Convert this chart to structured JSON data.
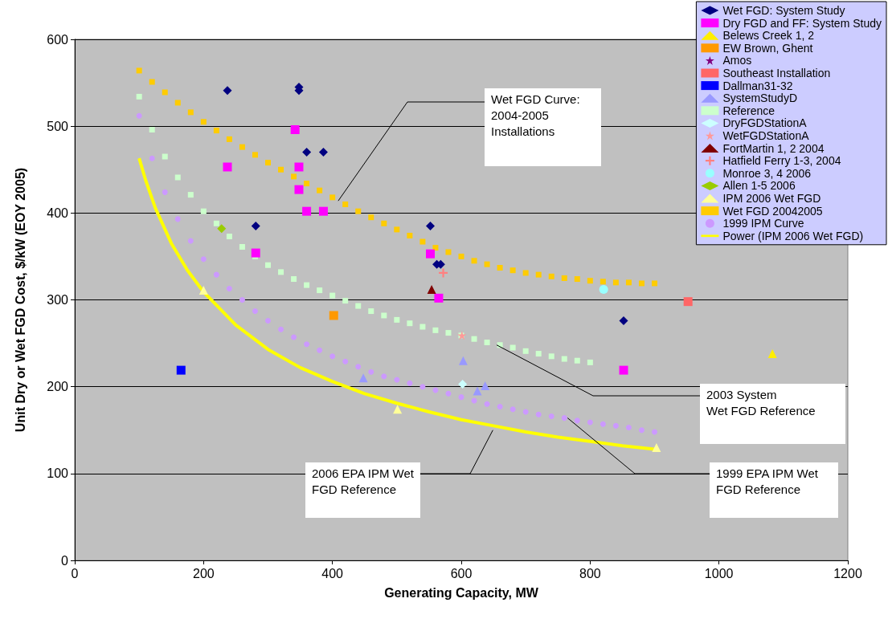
{
  "chart_data": {
    "type": "scatter",
    "xlabel": "Generating Capacity, MW",
    "ylabel": "Unit Dry or Wet FGD Cost, $/kW (EOY 2005)",
    "xlim": [
      0,
      1200
    ],
    "xticks": [
      0,
      200,
      400,
      600,
      800,
      1000,
      1200
    ],
    "ylim": [
      0,
      600
    ],
    "yticks": [
      0,
      100,
      200,
      300,
      400,
      500,
      600
    ],
    "grid": "y",
    "legend": "top right",
    "series": [
      {
        "name": "Wet FGD: System Study",
        "marker": "diamond",
        "color": "#000080",
        "x": [
          237,
          348,
          348,
          360,
          386,
          281,
          552,
          562,
          568,
          852
        ],
        "values": [
          541,
          545,
          541,
          470,
          470,
          385,
          385,
          341,
          341,
          276
        ]
      },
      {
        "name": "Dry FGD and FF: System Study",
        "marker": "square",
        "color": "#ff00ff",
        "x": [
          342,
          237,
          348,
          348,
          360,
          386,
          281,
          552,
          565,
          852
        ],
        "values": [
          496,
          453,
          453,
          427,
          402,
          402,
          354,
          353,
          302,
          219
        ]
      },
      {
        "name": "Belews Creek 1, 2",
        "type": "scatter",
        "marker": "triangle",
        "color": "#ffee00",
        "x": [
          1083
        ],
        "values": [
          238
        ]
      },
      {
        "name": "EW Brown, Ghent",
        "type": "scatter",
        "marker": "square",
        "color": "#ff9900",
        "x": [
          402
        ],
        "values": [
          282
        ]
      },
      {
        "name": "Amos",
        "type": "scatter",
        "marker": "star",
        "color": "#800080"
      },
      {
        "name": "Southeast Installation",
        "type": "scatter",
        "marker": "square",
        "color": "#ff6666",
        "x": [
          952
        ],
        "values": [
          298
        ]
      },
      {
        "name": "Dallman31-32",
        "type": "scatter",
        "marker": "square",
        "color": "#0000ff",
        "x": [
          165
        ],
        "values": [
          219
        ]
      },
      {
        "name": "SystemStudyD",
        "type": "scatter",
        "marker": "triangle",
        "color": "#9999ff",
        "x": [
          448,
          603,
          625,
          637
        ],
        "values": [
          210,
          230,
          195,
          201
        ]
      },
      {
        "name": "Reference",
        "type": "scatter",
        "marker": "square",
        "color": "#ccffcc",
        "x": [
          100,
          120,
          140,
          160,
          180,
          200,
          220,
          240,
          260,
          280,
          300,
          320,
          340,
          360,
          380,
          400,
          420,
          440,
          460,
          480,
          500,
          520,
          540,
          560,
          580,
          600,
          620,
          640,
          660,
          680,
          700,
          720,
          740,
          760,
          780,
          800
        ],
        "values": [
          534,
          496,
          465,
          441,
          421,
          402,
          388,
          373,
          361,
          350,
          340,
          332,
          324,
          317,
          311,
          305,
          299,
          293,
          287,
          282,
          277,
          273,
          269,
          265,
          262,
          259,
          255,
          251,
          248,
          245,
          241,
          238,
          235,
          232,
          230,
          228
        ]
      },
      {
        "name": "DryFGDStationA",
        "type": "scatter",
        "marker": "diamond",
        "color": "#ccffff",
        "x": [
          602
        ],
        "values": [
          203
        ]
      },
      {
        "name": "WetFGDStationA",
        "type": "scatter",
        "marker": "star",
        "color": "#ff9999",
        "x": [
          601
        ],
        "values": [
          259
        ]
      },
      {
        "name": "FortMartin 1, 2 2004",
        "type": "scatter",
        "marker": "triangle",
        "color": "#800000",
        "x": [
          554
        ],
        "values": [
          312
        ]
      },
      {
        "name": "Hatfield Ferry 1-3, 2004",
        "type": "scatter",
        "marker": "cross",
        "color": "#ff8080",
        "x": [
          572
        ],
        "values": [
          331
        ]
      },
      {
        "name": "Monroe 3, 4 2006",
        "type": "scatter",
        "marker": "circle",
        "color": "#99ffff",
        "x": [
          821
        ],
        "values": [
          312
        ]
      },
      {
        "name": "Allen 1-5 2006",
        "type": "scatter",
        "marker": "diamond",
        "color": "#99cc00",
        "x": [
          228
        ],
        "values": [
          382
        ]
      },
      {
        "name": "IPM 2006 Wet FGD",
        "type": "scatter",
        "marker": "triangle",
        "color": "#ffff99",
        "x": [
          200,
          501,
          903
        ],
        "values": [
          311,
          174,
          130
        ]
      },
      {
        "name": "Wet FGD 20042005",
        "type": "scatter",
        "marker": "square",
        "color": "#ffcc00",
        "x": [
          100,
          120,
          140,
          160,
          180,
          200,
          220,
          240,
          260,
          280,
          300,
          320,
          340,
          360,
          380,
          400,
          420,
          440,
          460,
          480,
          500,
          520,
          540,
          560,
          580,
          600,
          620,
          640,
          660,
          680,
          700,
          720,
          740,
          760,
          780,
          800,
          820,
          840,
          860,
          880,
          900
        ],
        "values": [
          564,
          551,
          539,
          527,
          516,
          505,
          495,
          485,
          476,
          467,
          458,
          450,
          442,
          434,
          426,
          418,
          410,
          402,
          395,
          388,
          381,
          374,
          367,
          360,
          355,
          350,
          345,
          341,
          337,
          334,
          331,
          329,
          327,
          325,
          324,
          322,
          321,
          320,
          320,
          319,
          319
        ]
      },
      {
        "name": "1999 IPM Curve",
        "marker": "circle",
        "color": "#cc99ff",
        "x": [
          100,
          120,
          140,
          160,
          180,
          200,
          220,
          240,
          260,
          280,
          300,
          320,
          340,
          360,
          380,
          400,
          420,
          440,
          460,
          480,
          500,
          520,
          540,
          560,
          580,
          600,
          620,
          640,
          660,
          680,
          700,
          720,
          740,
          760,
          780,
          800,
          820,
          840,
          860,
          880,
          900
        ],
        "values": [
          512,
          463,
          424,
          393,
          368,
          347,
          329,
          313,
          300,
          287,
          276,
          266,
          257,
          249,
          242,
          235,
          229,
          223,
          217,
          212,
          208,
          204,
          200,
          196,
          192,
          188,
          184,
          180,
          177,
          174,
          171,
          168,
          166,
          164,
          161,
          159,
          157,
          155,
          153,
          150,
          148
        ]
      },
      {
        "name": "Power (IPM 2006 Wet FGD)",
        "type": "line",
        "marker": "none",
        "line_style": "solid",
        "color": "#ffff00",
        "x": [
          100,
          110,
          125,
          150,
          175,
          200,
          250,
          300,
          350,
          400,
          450,
          500,
          550,
          600,
          650,
          700,
          750,
          800,
          850,
          900
        ],
        "values": [
          463,
          438,
          406,
          365,
          334,
          309,
          271,
          243,
          222,
          206,
          192,
          181,
          171,
          162,
          155,
          148,
          142,
          137,
          132,
          128
        ]
      }
    ],
    "annotations": [
      {
        "text": "Wet FGD Curve:\n2004-2005\nInstallations",
        "x": 409,
        "y": 414
      },
      {
        "text": "2003 System\nWet FGD Reference",
        "x": 655,
        "y": 248
      },
      {
        "text": "2006 EPA IPM Wet\nFGD Reference",
        "x": 649,
        "y": 150
      },
      {
        "text": "1999 EPA IPM Wet\nFGD Reference",
        "x": 765,
        "y": 164
      }
    ]
  }
}
